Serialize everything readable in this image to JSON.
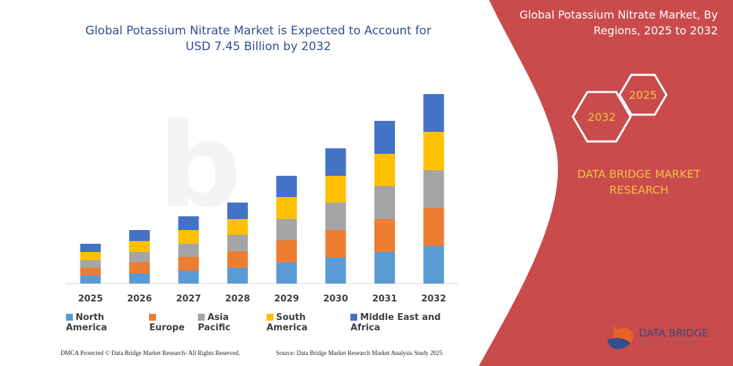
{
  "chart_data": {
    "type": "stacked-bar",
    "title": "Global Potassium Nitrate Market is Expected to Account for USD 7.45 Billion by 2032",
    "categories": [
      "2025",
      "2026",
      "2027",
      "2028",
      "2029",
      "2030",
      "2031",
      "2032"
    ],
    "series": [
      {
        "name": "North America",
        "color": "#5b9bd5",
        "values": [
          12,
          15,
          19,
          23,
          31,
          38,
          46,
          55
        ]
      },
      {
        "name": "Europe",
        "color": "#ed7d31",
        "values": [
          11,
          16,
          20,
          24,
          32,
          40,
          48,
          55
        ]
      },
      {
        "name": "Asia Pacific",
        "color": "#a5a5a5",
        "values": [
          11,
          15,
          19,
          24,
          31,
          40,
          48,
          55
        ]
      },
      {
        "name": "South America",
        "color": "#ffc000",
        "values": [
          12,
          16,
          20,
          23,
          32,
          39,
          47,
          56
        ]
      },
      {
        "name": "Middle East and Africa",
        "color": "#4472c4",
        "values": [
          12,
          16,
          20,
          24,
          31,
          40,
          48,
          55
        ]
      }
    ]
  },
  "panel": {
    "title": "Global Potassium Nitrate Market, By Regions, 2025 to 2032",
    "hex_small": "2025",
    "hex_large": "2032",
    "brand": "DATA BRIDGE MARKET RESEARCH"
  },
  "logo": {
    "name": "DATA BRIDGE",
    "tagline": "MARKET RESEARCH"
  },
  "footer": {
    "left": "DMCA Protected © Data Bridge Market Research- All Rights Reserved.",
    "right": "Source: Data Bridge Market Research Market Analysis Study 2025"
  }
}
